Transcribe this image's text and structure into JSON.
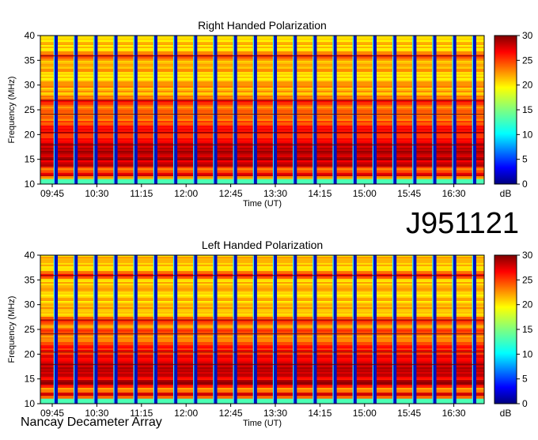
{
  "observation_id": "J951121",
  "credit": "Nancay Decameter Array",
  "chart_data": [
    {
      "type": "heatmap",
      "title": "Right Handed Polarization",
      "xlabel": "Time (UT)",
      "ylabel": "Frequency (MHz)",
      "x_tick_labels": [
        "09:45",
        "10:30",
        "11:15",
        "12:00",
        "12:45",
        "13:30",
        "14:15",
        "15:00",
        "15:45",
        "16:30"
      ],
      "y_ticks": [
        10,
        15,
        20,
        25,
        30,
        35,
        40
      ],
      "ylim": [
        10,
        40
      ],
      "colorbar": {
        "ticks": [
          0,
          5,
          10,
          15,
          20,
          25,
          30
        ],
        "unit": "dB",
        "range": [
          0,
          30
        ]
      },
      "calibration_gaps": 22,
      "intensity_profile_db": [
        {
          "mhz": 10,
          "db": 13
        },
        {
          "mhz": 11,
          "db": 19
        },
        {
          "mhz": 12,
          "db": 28
        },
        {
          "mhz": 13,
          "db": 22
        },
        {
          "mhz": 14,
          "db": 29
        },
        {
          "mhz": 15,
          "db": 28
        },
        {
          "mhz": 16,
          "db": 29
        },
        {
          "mhz": 17,
          "db": 29
        },
        {
          "mhz": 18,
          "db": 28
        },
        {
          "mhz": 19,
          "db": 27
        },
        {
          "mhz": 20,
          "db": 26
        },
        {
          "mhz": 21,
          "db": 27
        },
        {
          "mhz": 22,
          "db": 26
        },
        {
          "mhz": 23,
          "db": 24
        },
        {
          "mhz": 24,
          "db": 24
        },
        {
          "mhz": 25,
          "db": 24
        },
        {
          "mhz": 26,
          "db": 23
        },
        {
          "mhz": 27,
          "db": 26
        },
        {
          "mhz": 28,
          "db": 22
        },
        {
          "mhz": 29,
          "db": 22
        },
        {
          "mhz": 30,
          "db": 22
        },
        {
          "mhz": 31,
          "db": 21
        },
        {
          "mhz": 32,
          "db": 21
        },
        {
          "mhz": 33,
          "db": 22
        },
        {
          "mhz": 34,
          "db": 22
        },
        {
          "mhz": 35,
          "db": 21
        },
        {
          "mhz": 36,
          "db": 26
        },
        {
          "mhz": 37,
          "db": 21
        },
        {
          "mhz": 38,
          "db": 21
        },
        {
          "mhz": 39,
          "db": 21
        },
        {
          "mhz": 40,
          "db": 21
        }
      ]
    },
    {
      "type": "heatmap",
      "title": "Left Handed Polarization",
      "xlabel": "Time (UT)",
      "ylabel": "Frequency (MHz)",
      "x_tick_labels": [
        "09:45",
        "10:30",
        "11:15",
        "12:00",
        "12:45",
        "13:30",
        "14:15",
        "15:00",
        "15:45",
        "16:30"
      ],
      "y_ticks": [
        10,
        15,
        20,
        25,
        30,
        35,
        40
      ],
      "ylim": [
        10,
        40
      ],
      "colorbar": {
        "ticks": [
          0,
          5,
          10,
          15,
          20,
          25,
          30
        ],
        "unit": "dB",
        "range": [
          0,
          30
        ]
      },
      "calibration_gaps": 22,
      "intensity_profile_db": [
        {
          "mhz": 10,
          "db": 13
        },
        {
          "mhz": 11,
          "db": 20
        },
        {
          "mhz": 12,
          "db": 28
        },
        {
          "mhz": 13,
          "db": 21
        },
        {
          "mhz": 14,
          "db": 29
        },
        {
          "mhz": 15,
          "db": 27
        },
        {
          "mhz": 16,
          "db": 29
        },
        {
          "mhz": 17,
          "db": 28
        },
        {
          "mhz": 18,
          "db": 28
        },
        {
          "mhz": 19,
          "db": 27
        },
        {
          "mhz": 20,
          "db": 26
        },
        {
          "mhz": 21,
          "db": 26
        },
        {
          "mhz": 22,
          "db": 25
        },
        {
          "mhz": 23,
          "db": 24
        },
        {
          "mhz": 24,
          "db": 23
        },
        {
          "mhz": 25,
          "db": 24
        },
        {
          "mhz": 26,
          "db": 22
        },
        {
          "mhz": 27,
          "db": 25
        },
        {
          "mhz": 28,
          "db": 22
        },
        {
          "mhz": 29,
          "db": 21
        },
        {
          "mhz": 30,
          "db": 22
        },
        {
          "mhz": 31,
          "db": 21
        },
        {
          "mhz": 32,
          "db": 21
        },
        {
          "mhz": 33,
          "db": 21
        },
        {
          "mhz": 34,
          "db": 22
        },
        {
          "mhz": 35,
          "db": 21
        },
        {
          "mhz": 36,
          "db": 26
        },
        {
          "mhz": 37,
          "db": 21
        },
        {
          "mhz": 38,
          "db": 21
        },
        {
          "mhz": 39,
          "db": 21
        },
        {
          "mhz": 40,
          "db": 21
        }
      ]
    }
  ]
}
